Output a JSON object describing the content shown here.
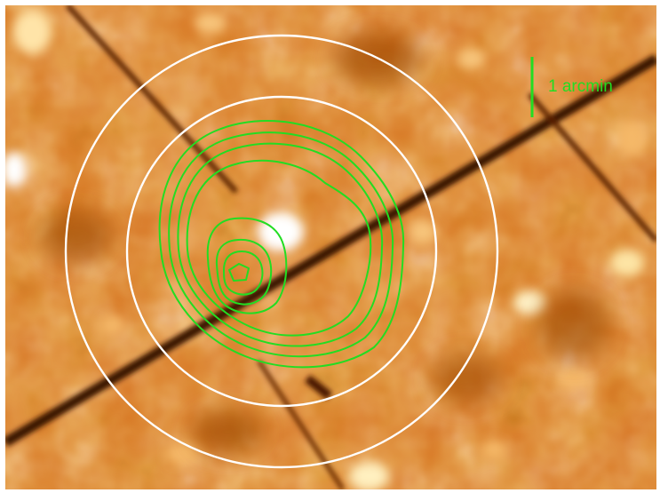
{
  "image": {
    "kind": "astronomical false-color map with contour overlay",
    "colormap": [
      "#3a1200",
      "#8a3800",
      "#c96210",
      "#e48a2e",
      "#f2b060",
      "#fff2cc",
      "#ffffff"
    ],
    "contour_color": "#22dd22",
    "ring_color": "#ffffff",
    "contour_levels": 8,
    "ring_count": 2
  },
  "scale_bar": {
    "label": "1 arcmin",
    "color": "#22dd22"
  }
}
